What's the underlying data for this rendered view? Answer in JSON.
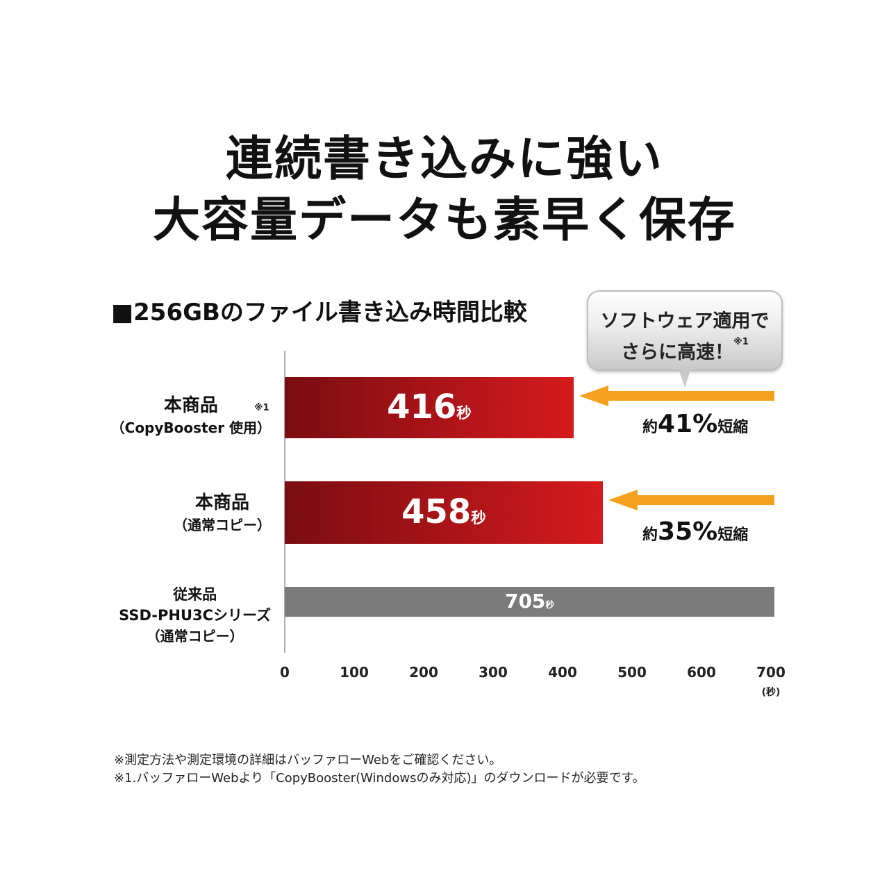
{
  "headline": {
    "line1": "連続書き込みに強い",
    "line2": "大容量データも素早く保存"
  },
  "colors": {
    "bar_primary_dark": "#7a0d12",
    "bar_primary_light": "#d51a1d",
    "bar_legacy": "#7b7b7b",
    "arrow": "#f5a01e",
    "axis": "#b0b0b0"
  },
  "callout": {
    "line1": "ソフトウェア適用で",
    "line2": "さらに高速！",
    "note": "※1"
  },
  "chart_data": {
    "type": "bar",
    "orientation": "horizontal",
    "title": "■256GBのファイル書き込み時間比較",
    "xlim": [
      0,
      700
    ],
    "xticks": [
      0,
      100,
      200,
      300,
      400,
      500,
      600,
      700
    ],
    "xunit": "(秒)",
    "value_unit": "秒",
    "categories": [
      {
        "main": "本商品",
        "sub": "（CopyBooster 使用）",
        "note": "※1"
      },
      {
        "main": "本商品",
        "sub": "（通常コピー）",
        "note": ""
      },
      {
        "main": "従来品",
        "main2": "SSD-PHU3Cシリーズ",
        "sub": "（通常コピー）",
        "note": ""
      }
    ],
    "values": [
      416,
      458,
      705
    ],
    "reductions": [
      {
        "prefix": "約",
        "value": "41%",
        "suffix": "短縮"
      },
      {
        "prefix": "約",
        "value": "35%",
        "suffix": "短縮"
      }
    ]
  },
  "footnotes": [
    "※測定方法や測定環境の詳細はバッファローWebをご確認ください。",
    "※1.バッファローWebより「CopyBooster(Windowsのみ対応)」のダウンロードが必要です。"
  ]
}
